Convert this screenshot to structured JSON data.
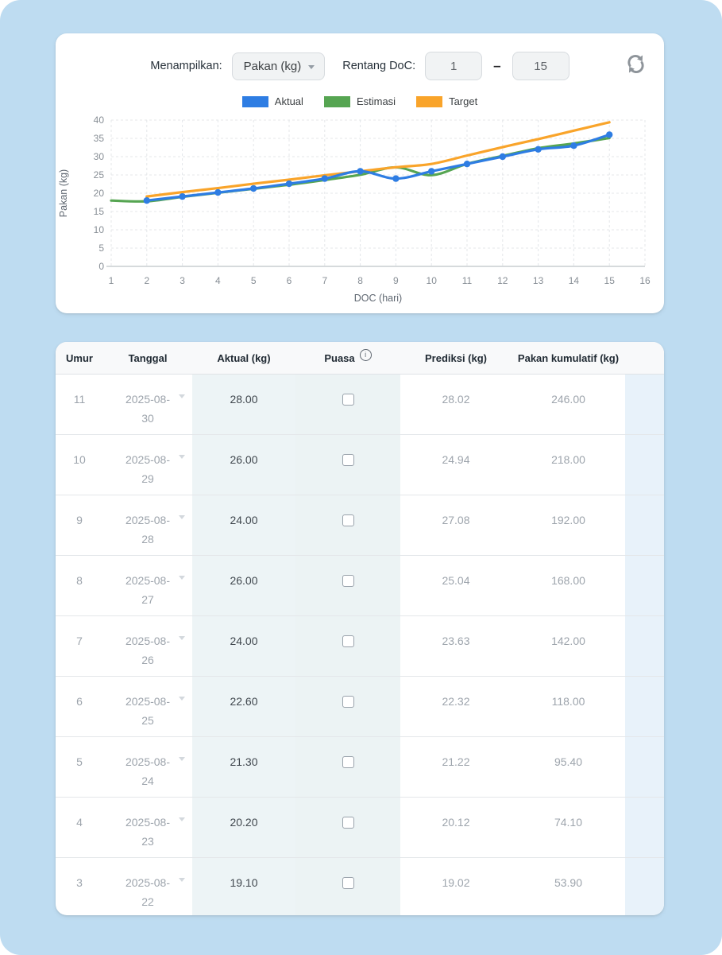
{
  "colors": {
    "page_bg": "#bedcf1",
    "aktual_series": "#2e7de3",
    "estimasi_series": "#56a552",
    "target_series": "#f9a42a",
    "aktual_col_tint": "#edf4f6",
    "puasa_col_tint": "#ecf3f4",
    "right_col_tint": "#e8f2fa"
  },
  "icons": {
    "refresh": "refresh-arrows",
    "info": "i",
    "caret_down": "caret-down-triangle"
  },
  "controls": {
    "menampilkan_label": "Menampilkan:",
    "metric_value": "Pakan (kg)",
    "rentang_label": "Rentang DoC:",
    "range_from": "1",
    "range_to": "15",
    "range_separator": "–"
  },
  "chart_data": {
    "type": "line",
    "title": "",
    "xlabel": "DOC (hari)",
    "ylabel": "Pakan (kg)",
    "xlim": [
      1,
      16
    ],
    "ylim": [
      0,
      40
    ],
    "xticks": [
      1,
      2,
      3,
      4,
      5,
      6,
      7,
      8,
      9,
      10,
      11,
      12,
      13,
      14,
      15,
      16
    ],
    "yticks": [
      0,
      5,
      10,
      15,
      20,
      25,
      30,
      35,
      40
    ],
    "grid": true,
    "grid_style": "dashed",
    "legend_position": "top",
    "draw_order": [
      1,
      2,
      0
    ],
    "series": [
      {
        "name": "Aktual",
        "color": "#2e7de3",
        "markers": true,
        "points": [
          [
            2,
            18
          ],
          [
            3,
            19.1
          ],
          [
            4,
            20.2
          ],
          [
            5,
            21.3
          ],
          [
            6,
            22.6
          ],
          [
            7,
            24
          ],
          [
            8,
            26
          ],
          [
            9,
            24
          ],
          [
            10,
            26
          ],
          [
            11,
            28
          ],
          [
            12,
            30
          ],
          [
            13,
            32
          ],
          [
            14,
            33
          ],
          [
            15,
            36
          ]
        ]
      },
      {
        "name": "Estimasi",
        "color": "#56a552",
        "markers": false,
        "points": [
          [
            1,
            18
          ],
          [
            2,
            17.8
          ],
          [
            3,
            19.02
          ],
          [
            4,
            20.12
          ],
          [
            5,
            21.22
          ],
          [
            6,
            22.32
          ],
          [
            7,
            23.63
          ],
          [
            8,
            25.04
          ],
          [
            9,
            27.08
          ],
          [
            10,
            24.94
          ],
          [
            11,
            28.02
          ],
          [
            12,
            30.2
          ],
          [
            13,
            32.3
          ],
          [
            14,
            33.6
          ],
          [
            15,
            35.1
          ]
        ]
      },
      {
        "name": "Target",
        "color": "#f9a42a",
        "markers": false,
        "points": [
          [
            2,
            19.1
          ],
          [
            3,
            20.3
          ],
          [
            4,
            21.4
          ],
          [
            5,
            22.6
          ],
          [
            6,
            23.7
          ],
          [
            7,
            24.9
          ],
          [
            8,
            26
          ],
          [
            9,
            27.1
          ],
          [
            10,
            28
          ],
          [
            11,
            30.3
          ],
          [
            12,
            32.6
          ],
          [
            13,
            34.8
          ],
          [
            14,
            37.1
          ],
          [
            15,
            39.4
          ]
        ]
      }
    ]
  },
  "table": {
    "headers": {
      "umur": "Umur",
      "tanggal": "Tanggal",
      "aktual": "Aktual (kg)",
      "puasa": "Puasa",
      "prediksi": "Prediksi (kg)",
      "kumulatif": "Pakan kumulatif (kg)"
    },
    "rows": [
      {
        "umur": "11",
        "tanggal": "2025-08-30",
        "aktual": "28.00",
        "puasa": false,
        "prediksi": "28.02",
        "kumulatif": "246.00"
      },
      {
        "umur": "10",
        "tanggal": "2025-08-29",
        "aktual": "26.00",
        "puasa": false,
        "prediksi": "24.94",
        "kumulatif": "218.00"
      },
      {
        "umur": "9",
        "tanggal": "2025-08-28",
        "aktual": "24.00",
        "puasa": false,
        "prediksi": "27.08",
        "kumulatif": "192.00"
      },
      {
        "umur": "8",
        "tanggal": "2025-08-27",
        "aktual": "26.00",
        "puasa": false,
        "prediksi": "25.04",
        "kumulatif": "168.00"
      },
      {
        "umur": "7",
        "tanggal": "2025-08-26",
        "aktual": "24.00",
        "puasa": false,
        "prediksi": "23.63",
        "kumulatif": "142.00"
      },
      {
        "umur": "6",
        "tanggal": "2025-08-25",
        "aktual": "22.60",
        "puasa": false,
        "prediksi": "22.32",
        "kumulatif": "118.00"
      },
      {
        "umur": "5",
        "tanggal": "2025-08-24",
        "aktual": "21.30",
        "puasa": false,
        "prediksi": "21.22",
        "kumulatif": "95.40"
      },
      {
        "umur": "4",
        "tanggal": "2025-08-23",
        "aktual": "20.20",
        "puasa": false,
        "prediksi": "20.12",
        "kumulatif": "74.10"
      },
      {
        "umur": "3",
        "tanggal": "2025-08-22",
        "aktual": "19.10",
        "puasa": false,
        "prediksi": "19.02",
        "kumulatif": "53.90"
      }
    ]
  }
}
